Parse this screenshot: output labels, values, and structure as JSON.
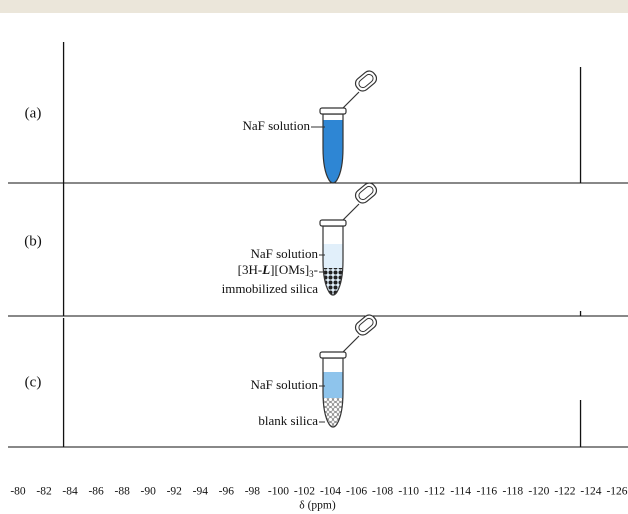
{
  "chart_data": {
    "type": "nmr",
    "x_label": "δ (ppm)",
    "xlim": [
      -80,
      -126
    ],
    "xticks": [
      -80,
      -82,
      -84,
      -86,
      -88,
      -90,
      -92,
      -94,
      -96,
      -98,
      -100,
      -102,
      -104,
      -106,
      -108,
      -110,
      -112,
      -114,
      -116,
      -118,
      -120,
      -122,
      -124,
      -126
    ],
    "color": "#111111",
    "spectra": [
      {
        "name": "(a)",
        "peaks_x": [
          -83.5,
          -123.2
        ],
        "peaks_height": [
          141,
          116
        ]
      },
      {
        "name": "(b)",
        "peaks_x": [
          -83.5,
          -123.2
        ],
        "peaks_height": [
          133,
          5
        ]
      },
      {
        "name": "(c)",
        "peaks_x": [
          -83.5,
          -123.2
        ],
        "peaks_height": [
          129,
          47
        ]
      }
    ]
  },
  "illustrations": [
    {
      "labels": [
        "NaF solution"
      ]
    },
    {
      "labels": [
        "NaF solution",
        "immobilized silica"
      ],
      "formula_parts": [
        "[3H-",
        "L",
        "][OMs]",
        "3",
        "-"
      ]
    },
    {
      "labels": [
        "NaF solution",
        "blank silica"
      ]
    }
  ]
}
